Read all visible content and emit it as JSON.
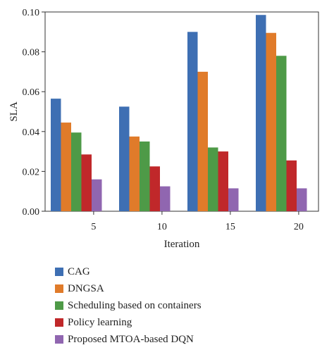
{
  "chart_data": {
    "type": "bar",
    "title": "",
    "xlabel": "Iteration",
    "ylabel": "SLA",
    "categories": [
      "5",
      "10",
      "15",
      "20"
    ],
    "ylim": [
      0,
      0.1
    ],
    "yticks": [
      "0.00",
      "0.02",
      "0.04",
      "0.06",
      "0.08",
      "0.10"
    ],
    "grid": false,
    "legend_position": "bottom",
    "series": [
      {
        "name": "CAG",
        "color": "#3e6fb3",
        "values": [
          0.0565,
          0.0525,
          0.09,
          0.0985
        ]
      },
      {
        "name": "DNGSA",
        "color": "#e07b2a",
        "values": [
          0.0445,
          0.0375,
          0.07,
          0.0895
        ]
      },
      {
        "name": "Scheduling based on containers",
        "color": "#4e9a47",
        "values": [
          0.0395,
          0.035,
          0.032,
          0.078
        ]
      },
      {
        "name": "Policy learning",
        "color": "#c0282a",
        "values": [
          0.0285,
          0.0225,
          0.03,
          0.0255
        ]
      },
      {
        "name": "Proposed MTOA-based DQN",
        "color": "#9066b0",
        "values": [
          0.016,
          0.0125,
          0.0115,
          0.0115
        ]
      }
    ]
  }
}
